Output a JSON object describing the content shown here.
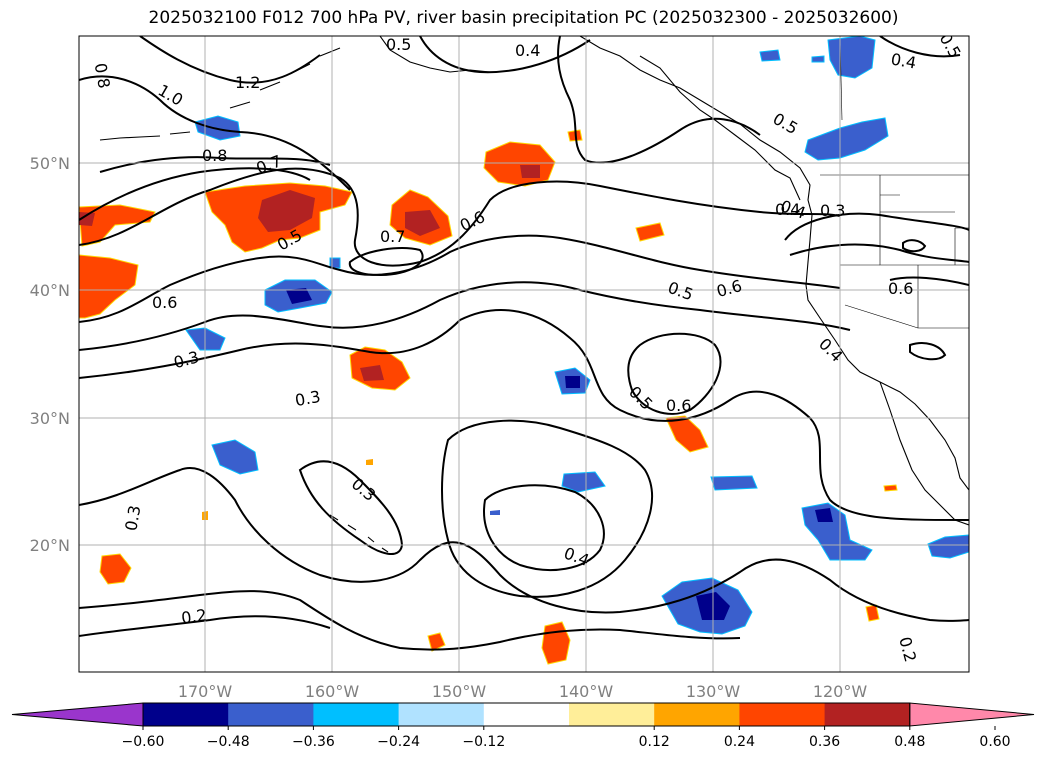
{
  "title": "2025032100 F012 700 hPa PV, river basin precipitation PC (2025032300 - 2025032600)",
  "map": {
    "lon_range": [
      -180,
      -110
    ],
    "lat_range": [
      10,
      60
    ],
    "lat_labels": [
      "20°N",
      "30°N",
      "40°N",
      "50°N"
    ],
    "lon_labels": [
      "170°W",
      "160°W",
      "150°W",
      "140°W",
      "130°W",
      "120°W"
    ]
  },
  "colorbar": {
    "ticks": [
      "−0.60",
      "−0.48",
      "−0.36",
      "−0.24",
      "−0.12",
      "0.12",
      "0.24",
      "0.36",
      "0.48",
      "0.60"
    ],
    "colors": [
      "#9a35cc",
      "#00008b",
      "#3a5fcd",
      "#00bfff",
      "#b0e2ff",
      "#ffffff",
      "#ffee99",
      "#ffa500",
      "#ff4500",
      "#b22222",
      "#ff88aa"
    ]
  },
  "contour_labels": [
    "0.8",
    "1.2",
    "1.0",
    "0.8",
    "0.7",
    "0.5",
    "0.4",
    "0.5",
    "0.4",
    "0.6",
    "0.7",
    "0.5",
    "0.6",
    "0.3",
    "0.6",
    "0.5",
    "0.6",
    "0.4",
    "0.3",
    "0.3",
    "0.5",
    "0.6",
    "0.4",
    "0.3",
    "0.3",
    "0.4",
    "0.2",
    "0.2",
    "0.4",
    "0.5"
  ]
}
